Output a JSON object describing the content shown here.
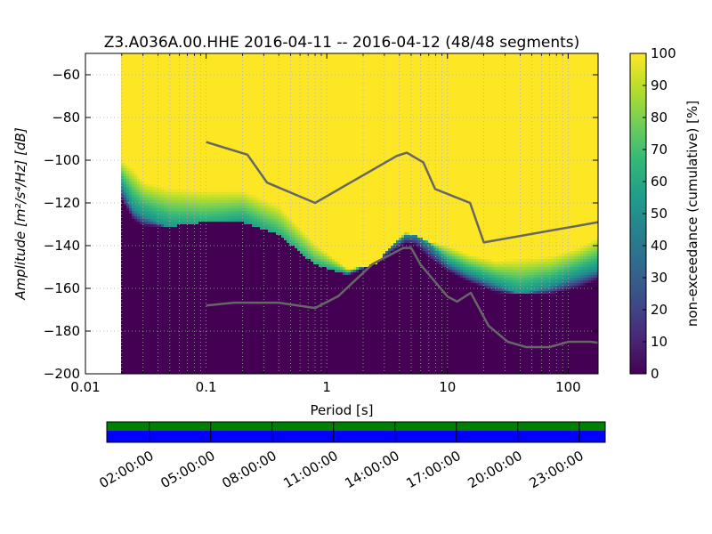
{
  "chart_data": [
    {
      "type": "heatmap",
      "title": "Z3.A036A.00.HHE   2016-04-11 -- 2016-04-12  (48/48 segments)",
      "xlabel": "Period [s]",
      "ylabel": "Amplitude [m²/s⁴/Hz] [dB]",
      "x_scale": "log",
      "xlim": [
        0.01,
        177
      ],
      "ylim": [
        -200,
        -50
      ],
      "x_ticks": [
        0.01,
        0.1,
        1,
        10,
        100
      ],
      "x_tick_labels": [
        "0.01",
        "0.1",
        "1",
        "10",
        "100"
      ],
      "y_ticks": [
        -200,
        -180,
        -160,
        -140,
        -120,
        -100,
        -80,
        -60
      ],
      "y_tick_labels": [
        "−200",
        "−180",
        "−160",
        "−140",
        "−120",
        "−100",
        "−80",
        "−60"
      ],
      "grid": "dotted",
      "data_period_min": 0.02,
      "band_edges": {
        "period": [
          0.02,
          0.025,
          0.03,
          0.05,
          0.1,
          0.2,
          0.4,
          0.8,
          1.5,
          2.5,
          3.5,
          4.5,
          5.5,
          7,
          10,
          15,
          25,
          40,
          70,
          120,
          177
        ],
        "p0": [
          -119,
          -128,
          -131,
          -131,
          -129,
          -129,
          -135,
          -149,
          -154,
          -149,
          -143,
          -139,
          -140,
          -146,
          -152,
          -157,
          -162,
          -163,
          -163,
          -160,
          -156
        ],
        "p50": [
          -112,
          -123,
          -126,
          -132,
          -133,
          -130,
          -139,
          -152,
          -153,
          -147,
          -140,
          -135,
          -135,
          -139,
          -148,
          -153,
          -158,
          -163,
          -159,
          -154,
          -151
        ],
        "p100": [
          -100,
          -104,
          -110,
          -113,
          -114,
          -114,
          -121,
          -139,
          -151,
          -149,
          -140,
          -134,
          -135,
          -138,
          -140,
          -144,
          -147,
          -146,
          -145,
          -141,
          -136
        ]
      },
      "noise_models": [
        {
          "name": "high",
          "period": [
            0.1,
            0.22,
            0.32,
            0.8,
            3.8,
            4.6,
            6.3,
            7.9,
            15.4,
            20,
            354.8
          ],
          "db": [
            -91.5,
            -97.4,
            -110.5,
            -120.0,
            -98.0,
            -96.5,
            -101.0,
            -113.5,
            -120.0,
            -138.5,
            -126.0
          ]
        },
        {
          "name": "low",
          "period": [
            0.1,
            0.17,
            0.4,
            0.8,
            1.24,
            2.4,
            4.3,
            5.0,
            6.0,
            10.0,
            12.0,
            15.6,
            21.9,
            31.6,
            45.0,
            70.0,
            101.0,
            154.0,
            328.0
          ],
          "db": [
            -168.0,
            -166.7,
            -166.7,
            -169.2,
            -163.7,
            -148.6,
            -141.1,
            -141.1,
            -149.0,
            -163.8,
            -166.2,
            -162.1,
            -177.5,
            -185.0,
            -187.5,
            -187.5,
            -185.0,
            -185.0,
            -187.5
          ]
        }
      ]
    },
    {
      "type": "heatmap",
      "colorbar": true,
      "label": "non-exceedance (cumulative) [%]",
      "ylim": [
        0,
        100
      ],
      "ticks": [
        0,
        10,
        20,
        30,
        40,
        50,
        60,
        70,
        80,
        90,
        100
      ],
      "colormap": "viridis"
    },
    {
      "type": "bar",
      "name": "data availability",
      "data_row_color": "#008000",
      "gap_row_color": "#0000ff",
      "tick_labels": [
        "02:00:00",
        "05:00:00",
        "08:00:00",
        "11:00:00",
        "14:00:00",
        "17:00:00",
        "20:00:00",
        "23:00:00"
      ]
    }
  ]
}
